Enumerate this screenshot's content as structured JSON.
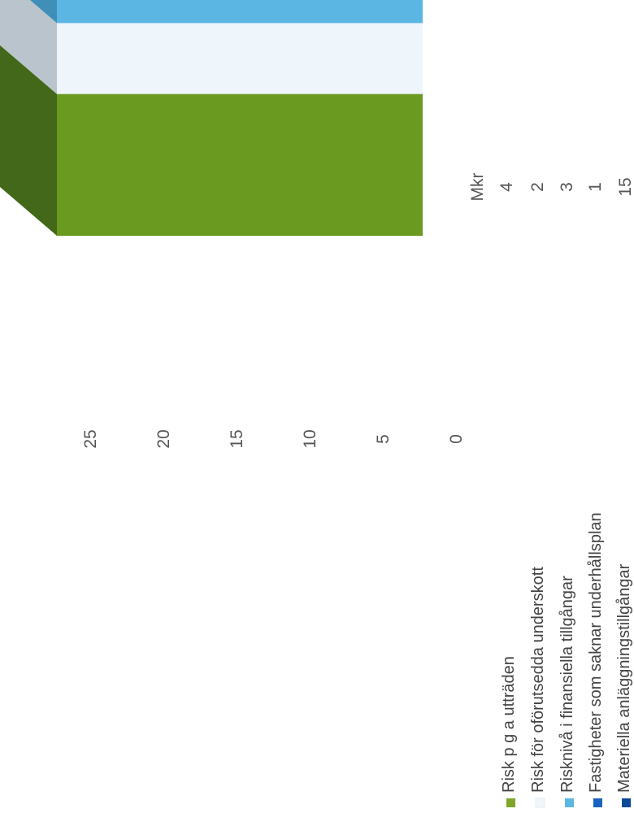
{
  "chart_data": {
    "type": "bar",
    "orientation": "stacked-3d-rotated",
    "title": "",
    "xlabel": "",
    "ylabel": "",
    "ylim": [
      0,
      25
    ],
    "yticks": [
      0,
      5,
      10,
      15,
      20,
      25
    ],
    "value_header": "Mkr",
    "grid": false,
    "legend_position": "left",
    "series": [
      {
        "name": "Risk p g a utträden",
        "value": 4,
        "color": "#6a9a1f",
        "side_color": "#44681a",
        "top_color": "#3d5f17",
        "swatch": "#7fa62a"
      },
      {
        "name": "Risk för oförutsedda underskott",
        "value": 2,
        "color": "#eef5fb",
        "side_color": "#b9c4cc",
        "top_color": "#a9b4bd",
        "swatch": "#f1f6fb"
      },
      {
        "name": "Risknivå i finansiella tillgångar",
        "value": 3,
        "color": "#5cb6e4",
        "side_color": "#3f8fb8",
        "top_color": "#2f7aa0",
        "swatch": "#5cb6e4"
      },
      {
        "name": "Fastigheter som saknar underhållsplan",
        "value": 1,
        "color": "#1a63c0",
        "side_color": "#174f8f",
        "top_color": "#144070",
        "swatch": "#1a63c0"
      },
      {
        "name": "Materiella anläggningstillgångar",
        "value": 15,
        "color": "#0c4a96",
        "side_color": "#0a3a70",
        "top_color": "#0b2f57",
        "swatch": "#0c4a96"
      }
    ]
  }
}
